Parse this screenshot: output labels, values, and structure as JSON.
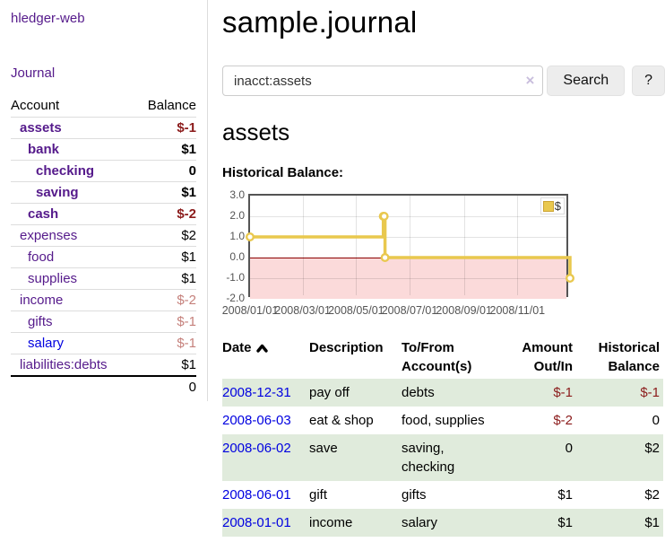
{
  "app": {
    "title": "hledger-web"
  },
  "sidebar": {
    "journal_label": "Journal",
    "headers": {
      "account": "Account",
      "balance": "Balance"
    },
    "accounts": [
      {
        "name": "assets",
        "indent": 1,
        "balance": "$-1",
        "bold": true,
        "negative": true
      },
      {
        "name": "bank",
        "indent": 2,
        "balance": "$1",
        "bold": true,
        "negative": false
      },
      {
        "name": "checking",
        "indent": 3,
        "balance": "0",
        "bold": true,
        "negative": false
      },
      {
        "name": "saving",
        "indent": 3,
        "balance": "$1",
        "bold": true,
        "negative": false
      },
      {
        "name": "cash",
        "indent": 2,
        "balance": "$-2",
        "bold": true,
        "negative": true
      },
      {
        "name": "expenses",
        "indent": 1,
        "balance": "$2",
        "bold": false,
        "negative": false
      },
      {
        "name": "food",
        "indent": 2,
        "balance": "$1",
        "bold": false,
        "negative": false
      },
      {
        "name": "supplies",
        "indent": 2,
        "balance": "$1",
        "bold": false,
        "negative": false
      },
      {
        "name": "income",
        "indent": 1,
        "balance": "$-2",
        "bold": false,
        "negative": true
      },
      {
        "name": "gifts",
        "indent": 2,
        "balance": "$-1",
        "bold": false,
        "negative": true
      },
      {
        "name": "salary",
        "indent": 2,
        "balance": "$-1",
        "bold": false,
        "negative": true,
        "unvisited": true
      },
      {
        "name": "liabilities:debts",
        "indent": 1,
        "balance": "$1",
        "bold": false,
        "negative": false
      }
    ],
    "total": "0"
  },
  "main": {
    "title": "sample.journal",
    "search": {
      "value": "inacct:assets",
      "clear_icon": "×",
      "button_label": "Search",
      "help_label": "?"
    },
    "account_heading": "assets",
    "chart_label": "Historical Balance:"
  },
  "chart_data": {
    "type": "line",
    "step": true,
    "title": "Historical Balance:",
    "x_start": "2008-01-01",
    "x_end": "2008-12-31",
    "series": [
      {
        "name": "$",
        "color": "#e9c84e",
        "points": [
          {
            "date": "2008-01-01",
            "value": 1
          },
          {
            "date": "2008-06-01",
            "value": 2
          },
          {
            "date": "2008-06-02",
            "value": 2
          },
          {
            "date": "2008-06-03",
            "value": 0
          },
          {
            "date": "2008-12-31",
            "value": -1
          }
        ]
      }
    ],
    "ylim": [
      -2,
      3
    ],
    "yticks": [
      3,
      2,
      1,
      0,
      -1,
      -2
    ],
    "ytick_labels": [
      "3.0",
      "2.0",
      "1.0",
      "0.0",
      "-1.0",
      "-2.0"
    ],
    "xtick_dates": [
      "2008-01-01",
      "2008-03-01",
      "2008-05-01",
      "2008-07-01",
      "2008-09-01",
      "2008-11-01"
    ],
    "xtick_labels": [
      "2008/01/01",
      "2008/03/01",
      "2008/05/01",
      "2008/07/01",
      "2008/09/01",
      "2008/11/01"
    ],
    "grid": true,
    "negative_region": true,
    "legend": {
      "label": "$",
      "position": "top-right"
    }
  },
  "register": {
    "headers": {
      "date": "Date",
      "description": "Description",
      "account": "To/From Account(s)",
      "amount": "Amount Out/In",
      "balance": "Historical Balance"
    },
    "rows": [
      {
        "date": "2008-12-31",
        "description": "pay off",
        "account": "debts",
        "amount": "$-1",
        "balance": "$-1"
      },
      {
        "date": "2008-06-03",
        "description": "eat & shop",
        "account": "food, supplies",
        "amount": "$-2",
        "balance": "0"
      },
      {
        "date": "2008-06-02",
        "description": "save",
        "account": "saving, checking",
        "amount": "0",
        "balance": "$2"
      },
      {
        "date": "2008-06-01",
        "description": "gift",
        "account": "gifts",
        "amount": "$1",
        "balance": "$2"
      },
      {
        "date": "2008-01-01",
        "description": "income",
        "account": "salary",
        "amount": "$1",
        "balance": "$1"
      }
    ]
  },
  "colors": {
    "link_purple": "#551a8b",
    "link_blue": "#0000e0",
    "negative_dark": "#8b1b1b",
    "negative_light": "#c5807b",
    "row_green": "#e0ebdc",
    "chart_gold": "#e9c84e",
    "chart_negative_fill": "#fbdada",
    "chart_zero_line": "#8b0000",
    "chart_border": "#545454"
  }
}
